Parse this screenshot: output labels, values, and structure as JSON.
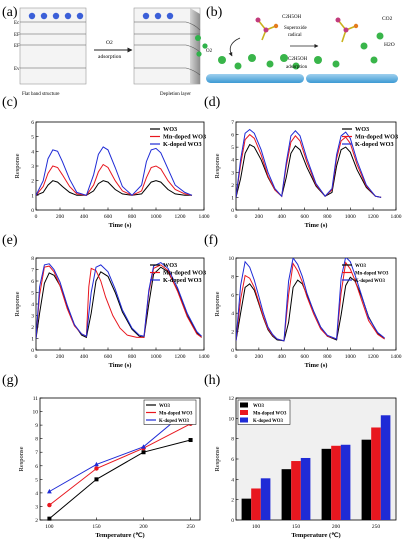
{
  "figure": {
    "panel_labels": [
      "(a)",
      "(b)",
      "(c)",
      "(d)",
      "(e)",
      "(f)",
      "(g)",
      "(h)"
    ],
    "schematic_a": {
      "band_labels": [
        "Ec",
        "EF",
        "EF",
        "Ev"
      ],
      "arrow_label_1": "O2",
      "arrow_label_2": "adsorption",
      "caption_left": "Flat band structure",
      "caption_right": "Depletion layer",
      "o2_symbol": "O2"
    },
    "schematic_b": {
      "ethanol_label": "C2H5OH",
      "radical_label_1": "Superoxide",
      "radical_label_2": "radical",
      "adsorption_label_1": "C2H5OH",
      "adsorption_label_2": "adsorption",
      "product_1": "CO2",
      "product_2": "H2O"
    },
    "legend_labels": [
      "WO3",
      "Mn-doped WO3",
      "K-doped WO3"
    ],
    "series_colors": [
      "#000000",
      "#e8171f",
      "#1f2bd6"
    ]
  },
  "chart_data": [
    {
      "panel": "(c)",
      "type": "line",
      "xlabel": "Time (s)",
      "ylabel": "Response",
      "xlim": [
        0,
        1400
      ],
      "ylim": [
        0,
        6
      ],
      "xticks": [
        0,
        200,
        400,
        600,
        800,
        1000,
        1200,
        1400
      ],
      "yticks": [
        0,
        1,
        2,
        3,
        4,
        5,
        6
      ],
      "legend_position": "top-right",
      "series": [
        {
          "name": "WO3",
          "color": "#000000",
          "x": [
            0,
            60,
            100,
            140,
            180,
            220,
            280,
            340,
            420,
            480,
            520,
            560,
            600,
            660,
            720,
            800,
            880,
            920,
            960,
            1000,
            1040,
            1100,
            1160,
            1240,
            1300
          ],
          "y": [
            1.0,
            1.2,
            1.7,
            2.0,
            1.9,
            1.6,
            1.2,
            1.0,
            1.0,
            1.3,
            1.8,
            2.0,
            1.9,
            1.4,
            1.1,
            1.0,
            1.1,
            1.5,
            1.9,
            2.0,
            1.9,
            1.4,
            1.1,
            1.0,
            1.0
          ]
        },
        {
          "name": "Mn-doped WO3",
          "color": "#e8171f",
          "x": [
            0,
            60,
            100,
            140,
            180,
            220,
            280,
            340,
            420,
            480,
            520,
            560,
            600,
            660,
            720,
            800,
            880,
            920,
            960,
            1000,
            1040,
            1100,
            1160,
            1240,
            1300
          ],
          "y": [
            1.0,
            1.6,
            2.5,
            3.0,
            2.9,
            2.4,
            1.6,
            1.1,
            1.0,
            1.7,
            2.6,
            3.1,
            2.9,
            2.0,
            1.3,
            1.0,
            1.3,
            2.2,
            2.9,
            3.0,
            2.8,
            2.0,
            1.4,
            1.1,
            1.0
          ]
        },
        {
          "name": "K-doped WO3",
          "color": "#1f2bd6",
          "x": [
            0,
            60,
            100,
            140,
            180,
            220,
            280,
            340,
            420,
            480,
            520,
            560,
            600,
            660,
            720,
            800,
            880,
            920,
            960,
            1000,
            1040,
            1100,
            1160,
            1240,
            1300
          ],
          "y": [
            1.0,
            2.0,
            3.5,
            4.1,
            4.0,
            3.3,
            2.1,
            1.2,
            1.0,
            2.4,
            3.8,
            4.3,
            4.1,
            2.9,
            1.6,
            1.0,
            1.7,
            3.3,
            4.1,
            4.2,
            3.9,
            2.8,
            1.7,
            1.2,
            1.0
          ]
        }
      ]
    },
    {
      "panel": "(d)",
      "type": "line",
      "xlabel": "Time (s)",
      "ylabel": "Response",
      "xlim": [
        0,
        1400
      ],
      "ylim": [
        0,
        7
      ],
      "xticks": [
        0,
        200,
        400,
        600,
        800,
        1000,
        1200,
        1400
      ],
      "yticks": [
        0,
        1,
        2,
        3,
        4,
        5,
        6,
        7
      ],
      "legend_position": "top-right",
      "series": [
        {
          "name": "WO3",
          "color": "#000000",
          "x": [
            0,
            40,
            80,
            120,
            160,
            220,
            280,
            340,
            400,
            440,
            480,
            520,
            560,
            620,
            700,
            780,
            840,
            880,
            920,
            960,
            1000,
            1060,
            1140,
            1220,
            1270
          ],
          "y": [
            1.0,
            2.5,
            4.5,
            5.2,
            5.0,
            4.0,
            2.6,
            1.6,
            1.1,
            2.6,
            4.5,
            5.1,
            4.8,
            3.4,
            1.9,
            1.1,
            1.4,
            3.5,
            4.8,
            5.0,
            4.6,
            3.2,
            1.8,
            1.1,
            1.0
          ]
        },
        {
          "name": "Mn-doped WO3",
          "color": "#e8171f",
          "x": [
            0,
            40,
            80,
            120,
            160,
            220,
            280,
            340,
            400,
            440,
            480,
            520,
            560,
            620,
            700,
            780,
            840,
            880,
            920,
            960,
            1000,
            1060,
            1140,
            1220,
            1270
          ],
          "y": [
            1.0,
            3.6,
            5.6,
            6.0,
            5.7,
            4.4,
            2.7,
            1.6,
            1.1,
            3.5,
            5.4,
            5.9,
            5.5,
            3.8,
            2.0,
            1.1,
            1.6,
            4.1,
            5.5,
            5.8,
            5.3,
            3.6,
            1.9,
            1.1,
            1.0
          ]
        },
        {
          "name": "K-doped WO3",
          "color": "#1f2bd6",
          "x": [
            0,
            40,
            80,
            120,
            160,
            220,
            280,
            340,
            400,
            440,
            480,
            520,
            560,
            620,
            700,
            780,
            840,
            880,
            920,
            960,
            1000,
            1060,
            1140,
            1220,
            1270
          ],
          "y": [
            1.0,
            4.0,
            6.1,
            6.4,
            6.1,
            4.8,
            3.0,
            1.7,
            1.1,
            3.8,
            5.9,
            6.3,
            5.9,
            4.1,
            2.1,
            1.1,
            1.7,
            4.4,
            5.9,
            6.2,
            5.7,
            3.9,
            2.0,
            1.1,
            1.0
          ]
        }
      ]
    },
    {
      "panel": "(e)",
      "type": "line",
      "xlabel": "Time (s)",
      "ylabel": "Response",
      "xlim": [
        0,
        1400
      ],
      "ylim": [
        0,
        8
      ],
      "xticks": [
        0,
        200,
        400,
        600,
        800,
        1000,
        1200,
        1400
      ],
      "yticks": [
        0,
        1,
        2,
        3,
        4,
        5,
        6,
        7,
        8
      ],
      "legend_position": "top-right",
      "series": [
        {
          "name": "WO3",
          "color": "#000000",
          "x": [
            0,
            30,
            70,
            110,
            150,
            200,
            260,
            320,
            380,
            420,
            460,
            500,
            540,
            600,
            660,
            720,
            800,
            860,
            900,
            940,
            980,
            1040,
            1100,
            1180,
            1260,
            1340,
            1380
          ],
          "y": [
            1.0,
            3.2,
            5.8,
            6.7,
            6.5,
            5.6,
            3.8,
            2.2,
            1.3,
            1.1,
            3.2,
            6.0,
            6.8,
            6.4,
            5.0,
            3.3,
            1.8,
            1.2,
            1.1,
            4.0,
            6.6,
            7.2,
            6.8,
            5.2,
            3.0,
            1.5,
            1.1
          ]
        },
        {
          "name": "Mn-doped WO3",
          "color": "#e8171f",
          "x": [
            0,
            30,
            70,
            110,
            150,
            200,
            260,
            320,
            380,
            420,
            440,
            460,
            500,
            540,
            580,
            640,
            700,
            760,
            840,
            900,
            940,
            980,
            1040,
            1100,
            1180,
            1260,
            1340,
            1380
          ],
          "y": [
            1.0,
            4.8,
            7.2,
            7.3,
            6.8,
            5.6,
            3.6,
            2.1,
            1.4,
            1.2,
            5.5,
            7.1,
            6.9,
            6.0,
            4.6,
            3.0,
            1.9,
            1.3,
            1.1,
            1.1,
            5.0,
            7.1,
            7.4,
            6.9,
            5.1,
            2.9,
            1.4,
            1.1
          ]
        },
        {
          "name": "K-doped WO3",
          "color": "#1f2bd6",
          "x": [
            0,
            30,
            70,
            110,
            150,
            200,
            260,
            320,
            380,
            420,
            460,
            500,
            540,
            600,
            660,
            720,
            800,
            860,
            900,
            940,
            980,
            1040,
            1100,
            1180,
            1260,
            1340,
            1380
          ],
          "y": [
            1.0,
            5.5,
            7.4,
            7.5,
            7.0,
            5.9,
            3.9,
            2.2,
            1.4,
            1.2,
            5.0,
            7.2,
            7.4,
            6.8,
            5.3,
            3.5,
            1.9,
            1.3,
            1.2,
            5.2,
            7.3,
            7.6,
            7.1,
            5.4,
            3.2,
            1.6,
            1.2
          ]
        }
      ]
    },
    {
      "panel": "(f)",
      "type": "line",
      "xlabel": "Time (s)",
      "ylabel": "Response",
      "xlim": [
        0,
        1400
      ],
      "ylim": [
        0,
        10
      ],
      "xticks": [
        0,
        200,
        400,
        600,
        800,
        1000,
        1200,
        1400
      ],
      "yticks": [
        0,
        2,
        4,
        6,
        8,
        10
      ],
      "legend_position": "top-right",
      "series": [
        {
          "name": "WO3",
          "color": "#000000",
          "x": [
            0,
            40,
            80,
            120,
            160,
            200,
            240,
            280,
            320,
            360,
            420,
            460,
            500,
            540,
            580,
            620,
            680,
            740,
            800,
            880,
            920,
            960,
            1000,
            1040,
            1100,
            1160,
            1240,
            1300
          ],
          "y": [
            1.0,
            4.0,
            6.8,
            7.2,
            6.5,
            5.0,
            3.5,
            2.2,
            1.5,
            1.1,
            1.0,
            3.0,
            6.8,
            7.6,
            7.2,
            6.0,
            4.2,
            2.5,
            1.5,
            1.1,
            3.8,
            7.0,
            7.9,
            7.5,
            5.8,
            3.6,
            1.8,
            1.2
          ]
        },
        {
          "name": "Mn-doped WO3",
          "color": "#e8171f",
          "x": [
            0,
            40,
            80,
            120,
            160,
            200,
            240,
            280,
            320,
            360,
            420,
            460,
            500,
            540,
            580,
            620,
            680,
            740,
            800,
            880,
            920,
            960,
            1000,
            1040,
            1100,
            1160,
            1240,
            1300
          ],
          "y": [
            1.0,
            5.5,
            8.1,
            7.8,
            6.8,
            5.2,
            3.6,
            2.3,
            1.6,
            1.2,
            1.0,
            6.0,
            9.4,
            8.6,
            7.4,
            5.8,
            3.9,
            2.3,
            1.5,
            1.2,
            6.2,
            9.5,
            8.8,
            7.6,
            5.4,
            3.2,
            1.7,
            1.2
          ]
        },
        {
          "name": "K-doped WO3",
          "color": "#1f2bd6",
          "x": [
            0,
            40,
            80,
            120,
            160,
            200,
            240,
            280,
            320,
            360,
            420,
            460,
            500,
            540,
            580,
            620,
            680,
            740,
            800,
            880,
            920,
            960,
            1000,
            1040,
            1100,
            1160,
            1240,
            1300
          ],
          "y": [
            1.0,
            7.0,
            9.6,
            9.0,
            7.6,
            5.8,
            4.0,
            2.5,
            1.7,
            1.2,
            1.0,
            7.5,
            10.0,
            9.3,
            8.0,
            6.2,
            4.2,
            2.5,
            1.6,
            1.2,
            7.8,
            10.1,
            9.6,
            8.2,
            5.9,
            3.5,
            1.9,
            1.3
          ]
        }
      ]
    },
    {
      "panel": "(g)",
      "type": "line",
      "xlabel": "Temperature (℃)",
      "ylabel": "Response",
      "xlim": [
        90,
        260
      ],
      "ylim": [
        2,
        11
      ],
      "xticks": [
        100,
        150,
        200,
        250
      ],
      "yticks": [
        2,
        3,
        4,
        5,
        6,
        7,
        8,
        9,
        10,
        11
      ],
      "legend_position": "top-right",
      "series": [
        {
          "name": "WO3",
          "color": "#000000",
          "marker": "square",
          "x": [
            100,
            150,
            200,
            250
          ],
          "y": [
            2.1,
            5.0,
            7.0,
            7.9
          ]
        },
        {
          "name": "Mn-doped WO3",
          "color": "#e8171f",
          "marker": "circle",
          "x": [
            100,
            150,
            200,
            250
          ],
          "y": [
            3.1,
            5.8,
            7.3,
            9.1
          ]
        },
        {
          "name": "K-doped WO3",
          "color": "#1f2bd6",
          "marker": "triangle",
          "x": [
            100,
            150,
            200,
            250
          ],
          "y": [
            4.1,
            6.1,
            7.4,
            10.3
          ]
        }
      ]
    },
    {
      "panel": "(h)",
      "type": "bar",
      "xlabel": "Temperature (℃)",
      "ylabel": "Response",
      "categories": [
        "100",
        "150",
        "200",
        "250"
      ],
      "ylim": [
        0,
        12
      ],
      "yticks": [
        0,
        2,
        4,
        6,
        8,
        10,
        12
      ],
      "legend_position": "top-left",
      "series": [
        {
          "name": "WO3",
          "color": "#000000",
          "values": [
            2.1,
            5.0,
            7.0,
            7.9
          ]
        },
        {
          "name": "Mn-doped WO3",
          "color": "#e8171f",
          "values": [
            3.1,
            5.8,
            7.3,
            9.1
          ]
        },
        {
          "name": "K-doped WO3",
          "color": "#1f2bd6",
          "values": [
            4.1,
            6.1,
            7.4,
            10.3
          ]
        }
      ]
    }
  ]
}
